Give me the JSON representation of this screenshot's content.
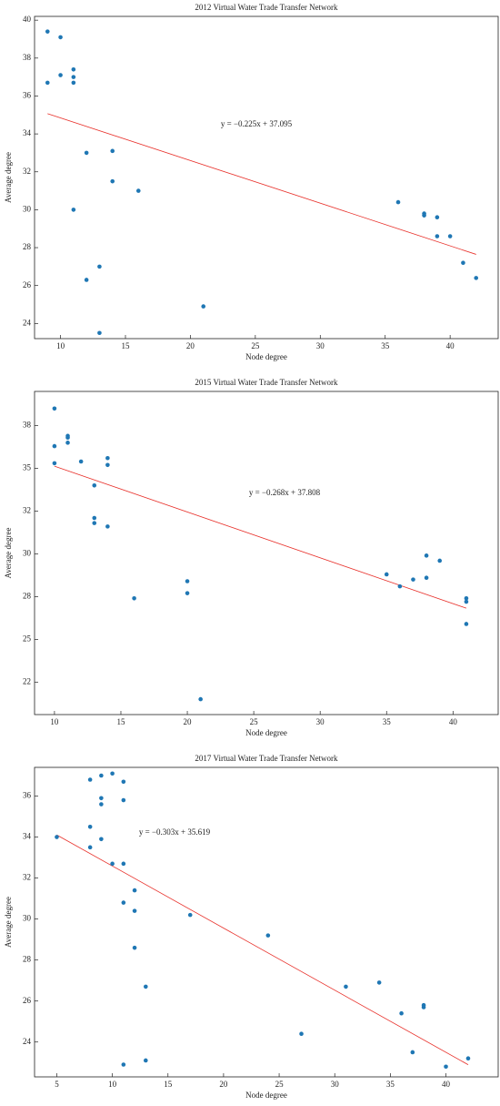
{
  "chart_data": [
    {
      "type": "scatter",
      "title": "2012 Virtual Water Trade Transfer Network",
      "x_label": "Node degree",
      "y_label": "Average degree",
      "x": [
        9,
        10,
        10,
        11,
        11,
        11,
        9,
        12,
        14,
        14,
        16,
        11,
        13,
        12,
        13,
        21,
        36,
        38,
        38,
        39,
        39,
        40,
        41,
        42
      ],
      "values": [
        39.4,
        39.1,
        37.1,
        37.4,
        37.0,
        36.7,
        36.7,
        33.0,
        33.1,
        31.5,
        31.0,
        30.0,
        27.0,
        26.3,
        23.5,
        24.9,
        30.4,
        29.8,
        29.7,
        29.6,
        28.6,
        28.6,
        27.2,
        26.4
      ],
      "color": "#1f77b4",
      "trendline": {
        "label": "y = −0.225x + 37.095",
        "slope": -0.225,
        "intercept": 37.095,
        "x": [
          9,
          42
        ],
        "color": "#e8302a"
      },
      "xlim": [
        8,
        43.7
      ],
      "ylim": [
        23.2,
        40.2
      ],
      "xticks": [
        10,
        15,
        20,
        25,
        30,
        35,
        40
      ],
      "yticks": [
        24,
        26,
        28,
        30,
        32,
        34,
        36,
        38,
        40
      ]
    },
    {
      "type": "scatter",
      "title": "2015 Virtual Water Trade Transfer Network",
      "x_label": "Node degree",
      "y_label": "Average degree",
      "x": [
        10,
        10,
        10,
        11,
        11,
        11,
        12,
        14,
        14,
        13,
        13,
        13,
        14,
        16,
        20,
        20,
        21,
        35,
        36,
        37,
        38,
        38,
        39,
        41,
        41,
        41
      ],
      "values": [
        38.5,
        36.3,
        35.3,
        36.9,
        36.8,
        36.5,
        35.4,
        35.6,
        35.2,
        34.0,
        32.1,
        31.8,
        31.6,
        27.4,
        28.4,
        27.7,
        21.5,
        28.8,
        28.1,
        28.5,
        29.9,
        28.6,
        29.6,
        27.4,
        27.2,
        25.9
      ],
      "color": "#1f77b4",
      "trendline": {
        "label": "y = −0.268x + 37.808",
        "slope": -0.268,
        "intercept": 37.808,
        "x": [
          10,
          41
        ],
        "color": "#e8302a"
      },
      "xlim": [
        8.5,
        43.4
      ],
      "ylim": [
        20.6,
        39.5
      ],
      "xticks": [
        10,
        15,
        20,
        25,
        30,
        35,
        40
      ],
      "yticks": [
        {
          "value": 22.5,
          "label": "22"
        },
        {
          "value": 25,
          "label": "25"
        },
        {
          "value": 27.5,
          "label": "28"
        },
        {
          "value": 30,
          "label": "30"
        },
        {
          "value": 32.5,
          "label": "32"
        },
        {
          "value": 35,
          "label": "35"
        },
        {
          "value": 37.5,
          "label": "38"
        }
      ]
    },
    {
      "type": "scatter",
      "title": "2017 Virtual Water Trade Transfer Network",
      "x_label": "Node degree",
      "y_label": "Average degree",
      "x": [
        5,
        8,
        9,
        10,
        11,
        9,
        9,
        11,
        8,
        9,
        8,
        10,
        11,
        12,
        11,
        12,
        12,
        17,
        24,
        27,
        31,
        34,
        36,
        38,
        38,
        37,
        40,
        42,
        13,
        13,
        11
      ],
      "values": [
        34.0,
        36.8,
        37.0,
        37.1,
        36.7,
        35.9,
        35.6,
        35.8,
        34.5,
        33.9,
        33.5,
        32.7,
        32.7,
        31.4,
        30.8,
        30.4,
        28.6,
        30.2,
        29.2,
        24.4,
        26.7,
        26.9,
        25.4,
        25.8,
        25.7,
        23.5,
        22.8,
        23.2,
        26.7,
        23.1,
        22.9
      ],
      "color": "#1f77b4",
      "trendline": {
        "label": "y = −0.303x + 35.619",
        "slope": -0.303,
        "intercept": 35.619,
        "x": [
          5,
          42
        ],
        "color": "#e8302a"
      },
      "xlim": [
        3,
        44.7
      ],
      "ylim": [
        22.3,
        37.4
      ],
      "xticks": [
        5,
        10,
        15,
        20,
        25,
        30,
        35,
        40
      ],
      "yticks": [
        24,
        26,
        28,
        30,
        32,
        34,
        36
      ]
    }
  ]
}
